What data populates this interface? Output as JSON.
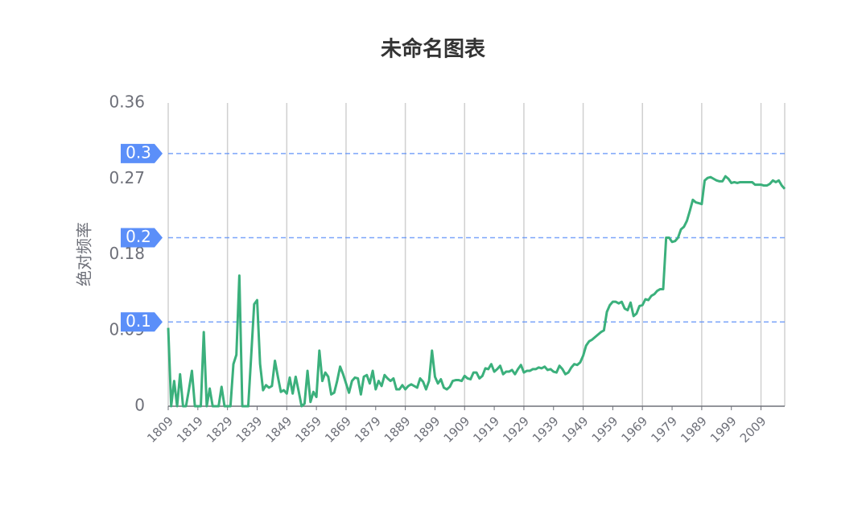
{
  "chart_data": {
    "type": "line",
    "title": "未命名图表",
    "y_label": "绝对频率",
    "x": [
      1809,
      1810,
      1811,
      1812,
      1813,
      1814,
      1815,
      1816,
      1817,
      1818,
      1819,
      1820,
      1821,
      1822,
      1823,
      1824,
      1825,
      1826,
      1827,
      1828,
      1829,
      1830,
      1831,
      1832,
      1833,
      1834,
      1835,
      1836,
      1837,
      1838,
      1839,
      1840,
      1841,
      1842,
      1843,
      1844,
      1845,
      1846,
      1847,
      1848,
      1849,
      1850,
      1851,
      1852,
      1853,
      1854,
      1855,
      1856,
      1857,
      1858,
      1859,
      1860,
      1861,
      1862,
      1863,
      1864,
      1865,
      1866,
      1867,
      1868,
      1869,
      1870,
      1871,
      1872,
      1873,
      1874,
      1875,
      1876,
      1877,
      1878,
      1879,
      1880,
      1881,
      1882,
      1883,
      1884,
      1885,
      1886,
      1887,
      1888,
      1889,
      1890,
      1891,
      1892,
      1893,
      1894,
      1895,
      1896,
      1897,
      1898,
      1899,
      1900,
      1901,
      1902,
      1903,
      1904,
      1905,
      1906,
      1907,
      1908,
      1909,
      1910,
      1911,
      1912,
      1913,
      1914,
      1915,
      1916,
      1917,
      1918,
      1919,
      1920,
      1921,
      1922,
      1923,
      1924,
      1925,
      1926,
      1927,
      1928,
      1929,
      1930,
      1931,
      1932,
      1933,
      1934,
      1935,
      1936,
      1937,
      1938,
      1939,
      1940,
      1941,
      1942,
      1943,
      1944,
      1945,
      1946,
      1947,
      1948,
      1949,
      1950,
      1951,
      1952,
      1953,
      1954,
      1955,
      1956,
      1957,
      1958,
      1959,
      1960,
      1961,
      1962,
      1963,
      1964,
      1965,
      1966,
      1967,
      1968,
      1969,
      1970,
      1971,
      1972,
      1973,
      1974,
      1975,
      1976,
      1977,
      1978,
      1979,
      1980,
      1981,
      1982,
      1983,
      1984,
      1985,
      1986,
      1987,
      1988,
      1989,
      1990,
      1991,
      1992,
      1993,
      1994,
      1995,
      1996,
      1997,
      1998,
      1999,
      2000,
      2001,
      2002,
      2003,
      2004,
      2005,
      2006,
      2007,
      2008,
      2009,
      2010,
      2011,
      2012,
      2013,
      2014,
      2015,
      2016,
      2017
    ],
    "values": [
      0.093,
      0,
      0.03,
      0,
      0.038,
      0,
      0,
      0.02,
      0.042,
      0,
      0,
      0,
      0.088,
      0,
      0.021,
      0,
      0,
      0,
      0.023,
      0,
      0,
      0,
      0.05,
      0.061,
      0.155,
      0,
      0,
      0,
      0.06,
      0.121,
      0.126,
      0.05,
      0.019,
      0.025,
      0.022,
      0.024,
      0.054,
      0.035,
      0.017,
      0.019,
      0.015,
      0.034,
      0.015,
      0.035,
      0.018,
      0,
      0.003,
      0.042,
      0.005,
      0.017,
      0.011,
      0.066,
      0.03,
      0.04,
      0.035,
      0.014,
      0.016,
      0.03,
      0.047,
      0.038,
      0.027,
      0.016,
      0.03,
      0.034,
      0.033,
      0.014,
      0.035,
      0.037,
      0.027,
      0.042,
      0.02,
      0.03,
      0.024,
      0.037,
      0.033,
      0.03,
      0.033,
      0.02,
      0.02,
      0.025,
      0.02,
      0.024,
      0.026,
      0.024,
      0.022,
      0.033,
      0.029,
      0.02,
      0.03,
      0.066,
      0.035,
      0.027,
      0.032,
      0.022,
      0.02,
      0.023,
      0.03,
      0.031,
      0.031,
      0.03,
      0.036,
      0.033,
      0.032,
      0.04,
      0.04,
      0.033,
      0.036,
      0.045,
      0.044,
      0.05,
      0.041,
      0.044,
      0.048,
      0.038,
      0.041,
      0.041,
      0.043,
      0.038,
      0.044,
      0.049,
      0.04,
      0.042,
      0.042,
      0.044,
      0.044,
      0.046,
      0.045,
      0.047,
      0.043,
      0.044,
      0.041,
      0.04,
      0.048,
      0.044,
      0.038,
      0.04,
      0.046,
      0.05,
      0.049,
      0.052,
      0.06,
      0.072,
      0.077,
      0.079,
      0.082,
      0.085,
      0.088,
      0.09,
      0.112,
      0.12,
      0.124,
      0.124,
      0.122,
      0.124,
      0.116,
      0.114,
      0.123,
      0.107,
      0.11,
      0.119,
      0.12,
      0.127,
      0.126,
      0.131,
      0.133,
      0.137,
      0.139,
      0.139,
      0.2,
      0.2,
      0.195,
      0.196,
      0.2,
      0.21,
      0.213,
      0.22,
      0.232,
      0.245,
      0.242,
      0.241,
      0.24,
      0.268,
      0.271,
      0.272,
      0.27,
      0.268,
      0.267,
      0.267,
      0.273,
      0.27,
      0.265,
      0.266,
      0.265,
      0.266,
      0.266,
      0.266,
      0.266,
      0.266,
      0.263,
      0.263,
      0.263,
      0.262,
      0.262,
      0.264,
      0.268,
      0.266,
      0.268,
      0.262,
      0.258
    ],
    "color": "#3bb07c",
    "xlim": [
      1809,
      2017
    ],
    "xticks": [
      1809,
      1819,
      1829,
      1839,
      1849,
      1859,
      1869,
      1879,
      1889,
      1899,
      1909,
      1919,
      1929,
      1939,
      1949,
      1959,
      1969,
      1979,
      1989,
      1999,
      2009
    ],
    "ylim": [
      0,
      0.36
    ],
    "yticks": [
      0,
      0.09,
      0.18,
      0.27,
      0.36
    ],
    "reference_lines": [
      0.1,
      0.2,
      0.3
    ],
    "reference_color": "#5b8ff9",
    "grid": true
  }
}
